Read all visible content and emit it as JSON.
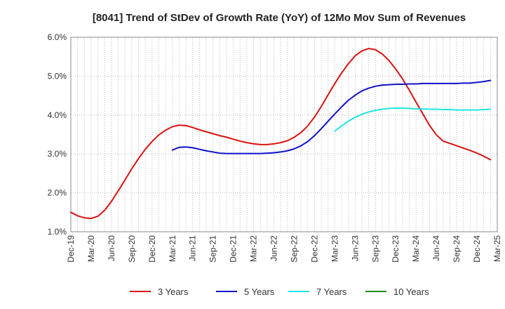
{
  "chart_data": {
    "type": "line",
    "title": "[8041]  Trend of StDev of Growth Rate (YoY) of 12Mo Mov Sum of Revenues",
    "xlabel": "",
    "ylabel": "",
    "ylim": [
      1.0,
      6.0
    ],
    "y_ticks": [
      "1.0%",
      "2.0%",
      "3.0%",
      "4.0%",
      "5.0%",
      "6.0%"
    ],
    "y_tick_values": [
      1.0,
      2.0,
      3.0,
      4.0,
      5.0,
      6.0
    ],
    "x_tick_labels": [
      "Dec-19",
      "Mar-20",
      "Jun-20",
      "Sep-20",
      "Dec-20",
      "Mar-21",
      "Jun-21",
      "Sep-21",
      "Dec-21",
      "Mar-22",
      "Jun-22",
      "Sep-22",
      "Dec-22",
      "Mar-23",
      "Jun-23",
      "Sep-23",
      "Dec-23",
      "Mar-24",
      "Jun-24",
      "Sep-24",
      "Dec-24",
      "Mar-25"
    ],
    "x_range_months": [
      0,
      63
    ],
    "grid": true,
    "legend_position": "bottom",
    "series": [
      {
        "name": "3 Years",
        "color": "#dd1111",
        "points": [
          [
            0,
            1.5
          ],
          [
            1,
            1.41
          ],
          [
            2,
            1.36
          ],
          [
            3,
            1.34
          ],
          [
            4,
            1.4
          ],
          [
            5,
            1.55
          ],
          [
            6,
            1.78
          ],
          [
            7,
            2.05
          ],
          [
            8,
            2.33
          ],
          [
            9,
            2.62
          ],
          [
            10,
            2.88
          ],
          [
            11,
            3.12
          ],
          [
            12,
            3.32
          ],
          [
            13,
            3.49
          ],
          [
            14,
            3.61
          ],
          [
            15,
            3.7
          ],
          [
            16,
            3.74
          ],
          [
            17,
            3.73
          ],
          [
            18,
            3.68
          ],
          [
            19,
            3.62
          ],
          [
            20,
            3.57
          ],
          [
            21,
            3.52
          ],
          [
            22,
            3.47
          ],
          [
            23,
            3.43
          ],
          [
            24,
            3.38
          ],
          [
            25,
            3.33
          ],
          [
            26,
            3.29
          ],
          [
            27,
            3.26
          ],
          [
            28,
            3.24
          ],
          [
            29,
            3.24
          ],
          [
            30,
            3.26
          ],
          [
            31,
            3.29
          ],
          [
            32,
            3.34
          ],
          [
            33,
            3.43
          ],
          [
            34,
            3.55
          ],
          [
            35,
            3.72
          ],
          [
            36,
            3.95
          ],
          [
            37,
            4.22
          ],
          [
            38,
            4.52
          ],
          [
            39,
            4.81
          ],
          [
            40,
            5.08
          ],
          [
            41,
            5.32
          ],
          [
            42,
            5.52
          ],
          [
            43,
            5.65
          ],
          [
            44,
            5.71
          ],
          [
            45,
            5.68
          ],
          [
            46,
            5.57
          ],
          [
            47,
            5.4
          ],
          [
            48,
            5.18
          ],
          [
            49,
            4.93
          ],
          [
            50,
            4.64
          ],
          [
            51,
            4.33
          ],
          [
            52,
            4.03
          ],
          [
            53,
            3.73
          ],
          [
            54,
            3.49
          ],
          [
            55,
            3.33
          ],
          [
            56,
            3.27
          ],
          [
            57,
            3.21
          ],
          [
            58,
            3.15
          ],
          [
            59,
            3.09
          ],
          [
            60,
            3.02
          ],
          [
            61,
            2.94
          ],
          [
            62,
            2.85
          ]
        ]
      },
      {
        "name": "5 Years",
        "color": "#1111cc",
        "points": [
          [
            15,
            3.1
          ],
          [
            16,
            3.17
          ],
          [
            17,
            3.18
          ],
          [
            18,
            3.16
          ],
          [
            19,
            3.12
          ],
          [
            20,
            3.08
          ],
          [
            21,
            3.05
          ],
          [
            22,
            3.02
          ],
          [
            23,
            3.01
          ],
          [
            24,
            3.01
          ],
          [
            25,
            3.01
          ],
          [
            26,
            3.01
          ],
          [
            27,
            3.01
          ],
          [
            28,
            3.01
          ],
          [
            29,
            3.02
          ],
          [
            30,
            3.03
          ],
          [
            31,
            3.05
          ],
          [
            32,
            3.08
          ],
          [
            33,
            3.13
          ],
          [
            34,
            3.21
          ],
          [
            35,
            3.32
          ],
          [
            36,
            3.47
          ],
          [
            37,
            3.65
          ],
          [
            38,
            3.84
          ],
          [
            39,
            4.03
          ],
          [
            40,
            4.21
          ],
          [
            41,
            4.38
          ],
          [
            42,
            4.51
          ],
          [
            43,
            4.62
          ],
          [
            44,
            4.69
          ],
          [
            45,
            4.74
          ],
          [
            46,
            4.77
          ],
          [
            47,
            4.78
          ],
          [
            48,
            4.79
          ],
          [
            49,
            4.79
          ],
          [
            50,
            4.8
          ],
          [
            51,
            4.8
          ],
          [
            52,
            4.81
          ],
          [
            53,
            4.81
          ],
          [
            54,
            4.81
          ],
          [
            55,
            4.81
          ],
          [
            56,
            4.81
          ],
          [
            57,
            4.81
          ],
          [
            58,
            4.82
          ],
          [
            59,
            4.82
          ],
          [
            60,
            4.84
          ],
          [
            61,
            4.86
          ],
          [
            62,
            4.89
          ]
        ]
      },
      {
        "name": "7 Years",
        "color": "#22e5e5",
        "points": [
          [
            39,
            3.59
          ],
          [
            40,
            3.72
          ],
          [
            41,
            3.84
          ],
          [
            42,
            3.94
          ],
          [
            43,
            4.02
          ],
          [
            44,
            4.08
          ],
          [
            45,
            4.12
          ],
          [
            46,
            4.15
          ],
          [
            47,
            4.17
          ],
          [
            48,
            4.18
          ],
          [
            49,
            4.18
          ],
          [
            50,
            4.17
          ],
          [
            51,
            4.16
          ],
          [
            52,
            4.16
          ],
          [
            53,
            4.15
          ],
          [
            54,
            4.15
          ],
          [
            55,
            4.14
          ],
          [
            56,
            4.14
          ],
          [
            57,
            4.13
          ],
          [
            58,
            4.13
          ],
          [
            59,
            4.13
          ],
          [
            60,
            4.13
          ],
          [
            61,
            4.14
          ],
          [
            62,
            4.15
          ]
        ]
      },
      {
        "name": "10 Years",
        "color": "#228B22",
        "points": []
      }
    ]
  }
}
